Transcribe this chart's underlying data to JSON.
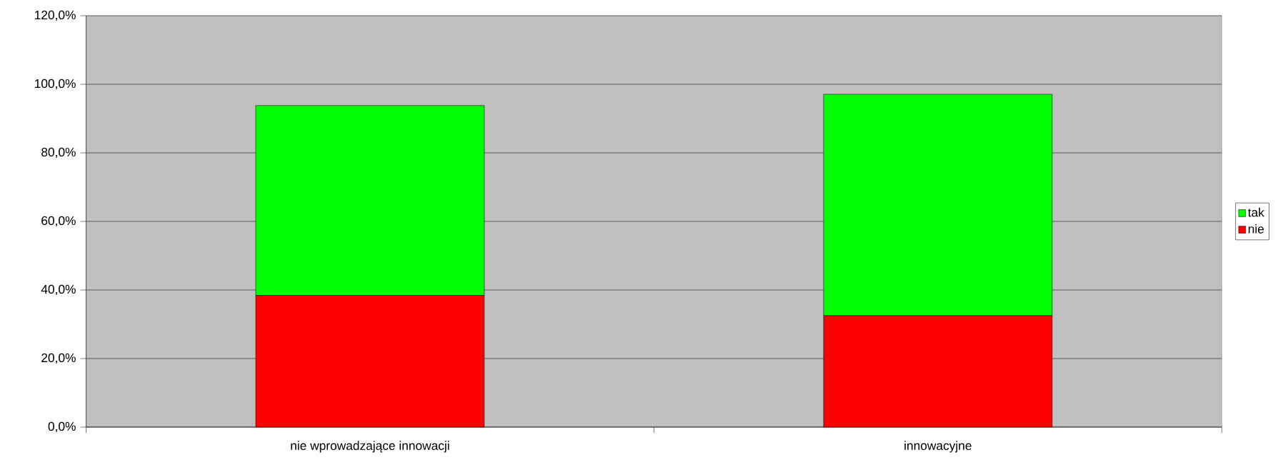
{
  "chart_data": {
    "type": "bar",
    "stacked": true,
    "categories": [
      "nie wprowadzające innowacji",
      "innowacyjne"
    ],
    "series": [
      {
        "name": "nie",
        "color": "#ff0000",
        "values": [
          38.4,
          32.5
        ]
      },
      {
        "name": "tak",
        "color": "#00ff00",
        "values": [
          55.4,
          64.6
        ]
      }
    ],
    "ylim": [
      0,
      120
    ],
    "yticks": [
      {
        "value": 0,
        "label": "0,0%"
      },
      {
        "value": 20,
        "label": "20,0%"
      },
      {
        "value": 40,
        "label": "40,0%"
      },
      {
        "value": 60,
        "label": "60,0%"
      },
      {
        "value": 80,
        "label": "80,0%"
      },
      {
        "value": 100,
        "label": "100,0%"
      },
      {
        "value": 120,
        "label": "120,0%"
      }
    ],
    "grid": "y",
    "legend": "right"
  }
}
